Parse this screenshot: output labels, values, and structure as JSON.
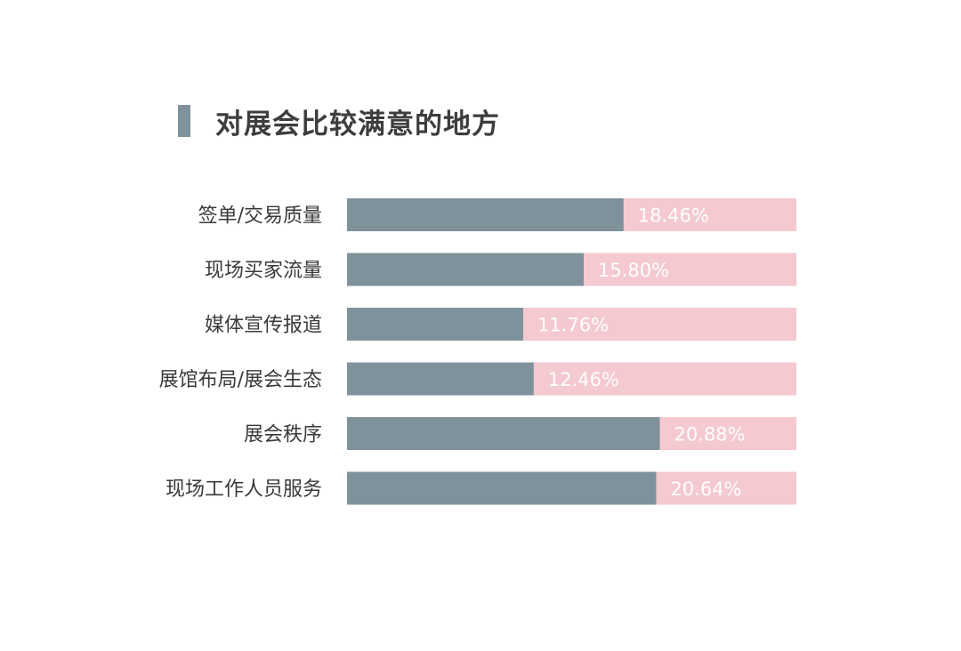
{
  "colors": {
    "main_bar": "#7f929c",
    "remainder_bar": "#f4c9d0",
    "title_marker": "#7f929c"
  },
  "chart_data": {
    "type": "bar",
    "orientation": "horizontal",
    "stacked": true,
    "title": "对展会比较满意的地方",
    "categories": [
      "签单/交易质量",
      "现场买家流量",
      "媒体宣传报道",
      "展馆布局/展会生态",
      "展会秩序",
      "现场工作人员服务"
    ],
    "values": [
      18.46,
      15.8,
      11.76,
      12.46,
      20.88,
      20.64
    ],
    "value_labels": [
      "18.46%",
      "15.80%",
      "11.76%",
      "12.46%",
      "20.88%",
      "20.64%"
    ],
    "xlim": [
      0,
      30
    ],
    "grid": false,
    "legend": "none"
  }
}
